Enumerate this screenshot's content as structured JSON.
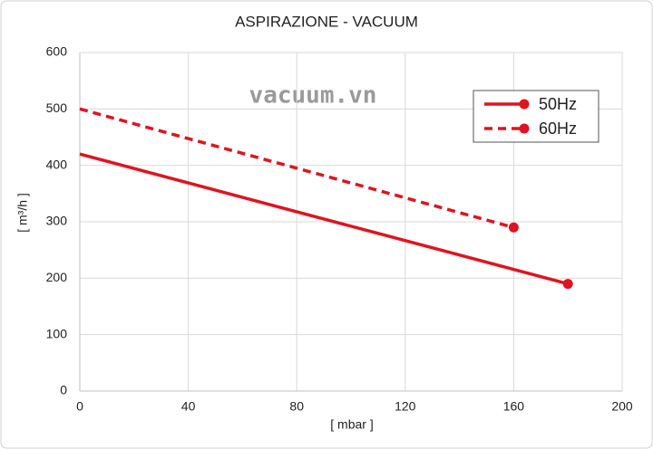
{
  "chart_data": {
    "type": "line",
    "title": "ASPIRAZIONE - VACUUM",
    "xlabel": "[ mbar ]",
    "ylabel": "[ m³/h ]",
    "watermark": "vacuum.vn",
    "series": [
      {
        "name": "50Hz",
        "color": "#e0141e",
        "linestyle": "solid",
        "x": [
          0,
          180
        ],
        "values": [
          420,
          190
        ]
      },
      {
        "name": "60Hz",
        "color": "#e0141e",
        "linestyle": "dashed",
        "x": [
          0,
          160
        ],
        "values": [
          500,
          290
        ]
      }
    ],
    "xlim": [
      0,
      200
    ],
    "xticks": [
      0,
      40,
      80,
      120,
      160,
      200
    ],
    "ylim": [
      0,
      600
    ],
    "yticks": [
      0,
      100,
      200,
      300,
      400,
      500,
      600
    ],
    "grid": true,
    "legend": "upper right"
  }
}
